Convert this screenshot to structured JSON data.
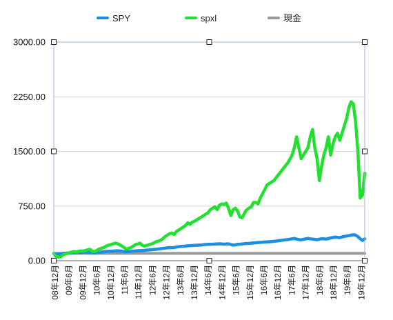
{
  "chart_data": {
    "type": "line",
    "title": "",
    "xlabel": "",
    "ylabel": "",
    "ylim": [
      0,
      3000
    ],
    "yticks": [
      "0.00",
      "750.00",
      "1500.00",
      "2250.00",
      "3000.00"
    ],
    "grid": true,
    "legend_position": "top-center",
    "x_tick_labels": [
      "08年12月",
      "09年6月",
      "09年12月",
      "10年6月",
      "10年12月",
      "11年6月",
      "11年12月",
      "12年6月",
      "12年12月",
      "13年6月",
      "13年12月",
      "14年6月",
      "14年12月",
      "15年6月",
      "15年12月",
      "16年6月",
      "16年12月",
      "17年6月",
      "17年12月",
      "18年6月",
      "18年12月",
      "19年6月",
      "19年12月"
    ],
    "x": [
      0,
      1,
      2,
      3,
      4,
      5,
      6,
      7,
      8,
      9,
      10,
      11,
      12,
      13,
      14,
      15,
      16,
      17,
      18,
      19,
      20,
      21,
      22,
      23,
      24,
      25,
      26,
      27,
      28,
      29,
      30,
      31,
      32,
      33,
      34,
      35,
      36,
      37,
      38,
      39,
      40,
      41,
      42,
      43,
      44,
      45,
      46,
      47,
      48,
      49,
      50,
      51,
      52,
      53,
      54,
      55,
      56,
      57,
      58,
      59,
      60,
      61,
      62,
      63,
      64,
      65,
      66,
      67,
      68,
      69,
      70,
      71,
      72,
      73,
      74,
      75,
      76,
      77,
      78,
      79,
      80,
      81,
      82,
      83,
      84,
      85,
      86,
      87,
      88,
      89,
      90,
      91,
      92,
      93,
      94,
      95,
      96,
      97,
      98,
      99,
      100,
      101,
      102,
      103,
      104,
      105,
      106,
      107,
      108,
      109,
      110,
      111,
      112,
      113,
      114,
      115,
      116,
      117,
      118,
      119,
      120,
      121,
      122,
      123,
      124,
      125,
      126,
      127,
      128,
      129,
      130,
      131,
      132,
      133,
      134,
      135,
      136,
      137
    ],
    "series": [
      {
        "name": "SPY",
        "color": "#1a8fe3",
        "values": [
          100,
          92,
          90,
          95,
          100,
          102,
          105,
          108,
          110,
          112,
          111,
          114,
          112,
          118,
          116,
          112,
          114,
          110,
          108,
          110,
          115,
          118,
          122,
          126,
          128,
          130,
          132,
          134,
          136,
          133,
          130,
          125,
          122,
          125,
          128,
          130,
          134,
          136,
          138,
          140,
          142,
          146,
          148,
          150,
          153,
          156,
          160,
          165,
          168,
          172,
          176,
          180,
          178,
          182,
          186,
          192,
          196,
          198,
          200,
          204,
          206,
          208,
          210,
          212,
          214,
          216,
          220,
          222,
          224,
          225,
          226,
          228,
          230,
          232,
          230,
          226,
          229,
          231,
          222,
          214,
          218,
          224,
          226,
          230,
          234,
          236,
          238,
          240,
          243,
          246,
          250,
          252,
          254,
          256,
          258,
          260,
          262,
          266,
          270,
          274,
          278,
          282,
          286,
          290,
          295,
          300,
          305,
          296,
          290,
          286,
          292,
          300,
          306,
          300,
          296,
          292,
          288,
          295,
          302,
          300,
          296,
          304,
          312,
          318,
          324,
          320,
          316,
          326,
          334,
          338,
          344,
          350,
          356,
          350,
          330,
          300,
          278,
          300
        ]
      },
      {
        "name": "spxl",
        "color": "#22e030",
        "values": [
          100,
          60,
          50,
          55,
          80,
          90,
          100,
          110,
          120,
          125,
          118,
          130,
          135,
          132,
          140,
          150,
          155,
          130,
          125,
          140,
          160,
          170,
          180,
          200,
          210,
          220,
          230,
          240,
          235,
          220,
          200,
          180,
          160,
          170,
          180,
          200,
          220,
          230,
          240,
          210,
          200,
          210,
          220,
          230,
          240,
          260,
          270,
          280,
          300,
          330,
          350,
          370,
          380,
          360,
          400,
          420,
          440,
          460,
          480,
          520,
          500,
          530,
          540,
          560,
          580,
          600,
          620,
          640,
          660,
          700,
          720,
          740,
          700,
          760,
          780,
          770,
          790,
          720,
          620,
          700,
          720,
          680,
          600,
          590,
          650,
          700,
          720,
          740,
          800,
          800,
          780,
          860,
          920,
          980,
          1040,
          1060,
          1080,
          1100,
          1140,
          1180,
          1220,
          1260,
          1300,
          1340,
          1390,
          1450,
          1550,
          1700,
          1550,
          1400,
          1450,
          1500,
          1550,
          1700,
          1800,
          1550,
          1400,
          1100,
          1300,
          1450,
          1550,
          1700,
          1450,
          1600,
          1700,
          1750,
          1650,
          1750,
          1850,
          1950,
          2100,
          2180,
          2150,
          1900,
          1500,
          860,
          900,
          1200
        ]
      },
      {
        "name": "現金",
        "color": "#999999",
        "values": [
          100,
          100,
          100,
          100,
          100,
          100,
          100,
          100,
          100,
          100,
          100,
          100,
          100,
          100,
          100,
          100,
          100,
          100,
          100,
          100,
          100,
          100,
          100,
          100,
          100,
          100,
          100,
          100,
          100,
          100,
          100,
          100,
          100,
          100,
          100,
          100,
          100,
          100,
          100,
          100,
          100,
          100,
          100,
          100,
          100,
          100,
          100,
          100,
          100,
          100,
          100,
          100,
          100,
          100,
          100,
          100,
          100,
          100,
          100,
          100,
          100,
          100,
          100,
          100,
          100,
          100,
          100,
          100,
          100,
          100,
          100,
          100,
          100,
          100,
          100,
          100,
          100,
          100,
          100,
          100,
          100,
          100,
          100,
          100,
          100,
          100,
          100,
          100,
          100,
          100,
          100,
          100,
          100,
          100,
          100,
          100,
          100,
          100,
          100,
          100,
          100,
          100,
          100,
          100,
          100,
          100,
          100,
          100,
          100,
          100,
          100,
          100,
          100,
          100,
          100,
          100,
          100,
          100,
          100,
          100,
          100,
          100,
          100,
          100,
          100,
          100,
          100,
          100,
          100,
          100,
          100,
          100,
          100,
          100,
          100,
          100,
          100,
          100
        ]
      }
    ]
  },
  "colors": {
    "grid": "#d8d8d8",
    "frame": "#9bb5dc",
    "handle": "#222222"
  }
}
